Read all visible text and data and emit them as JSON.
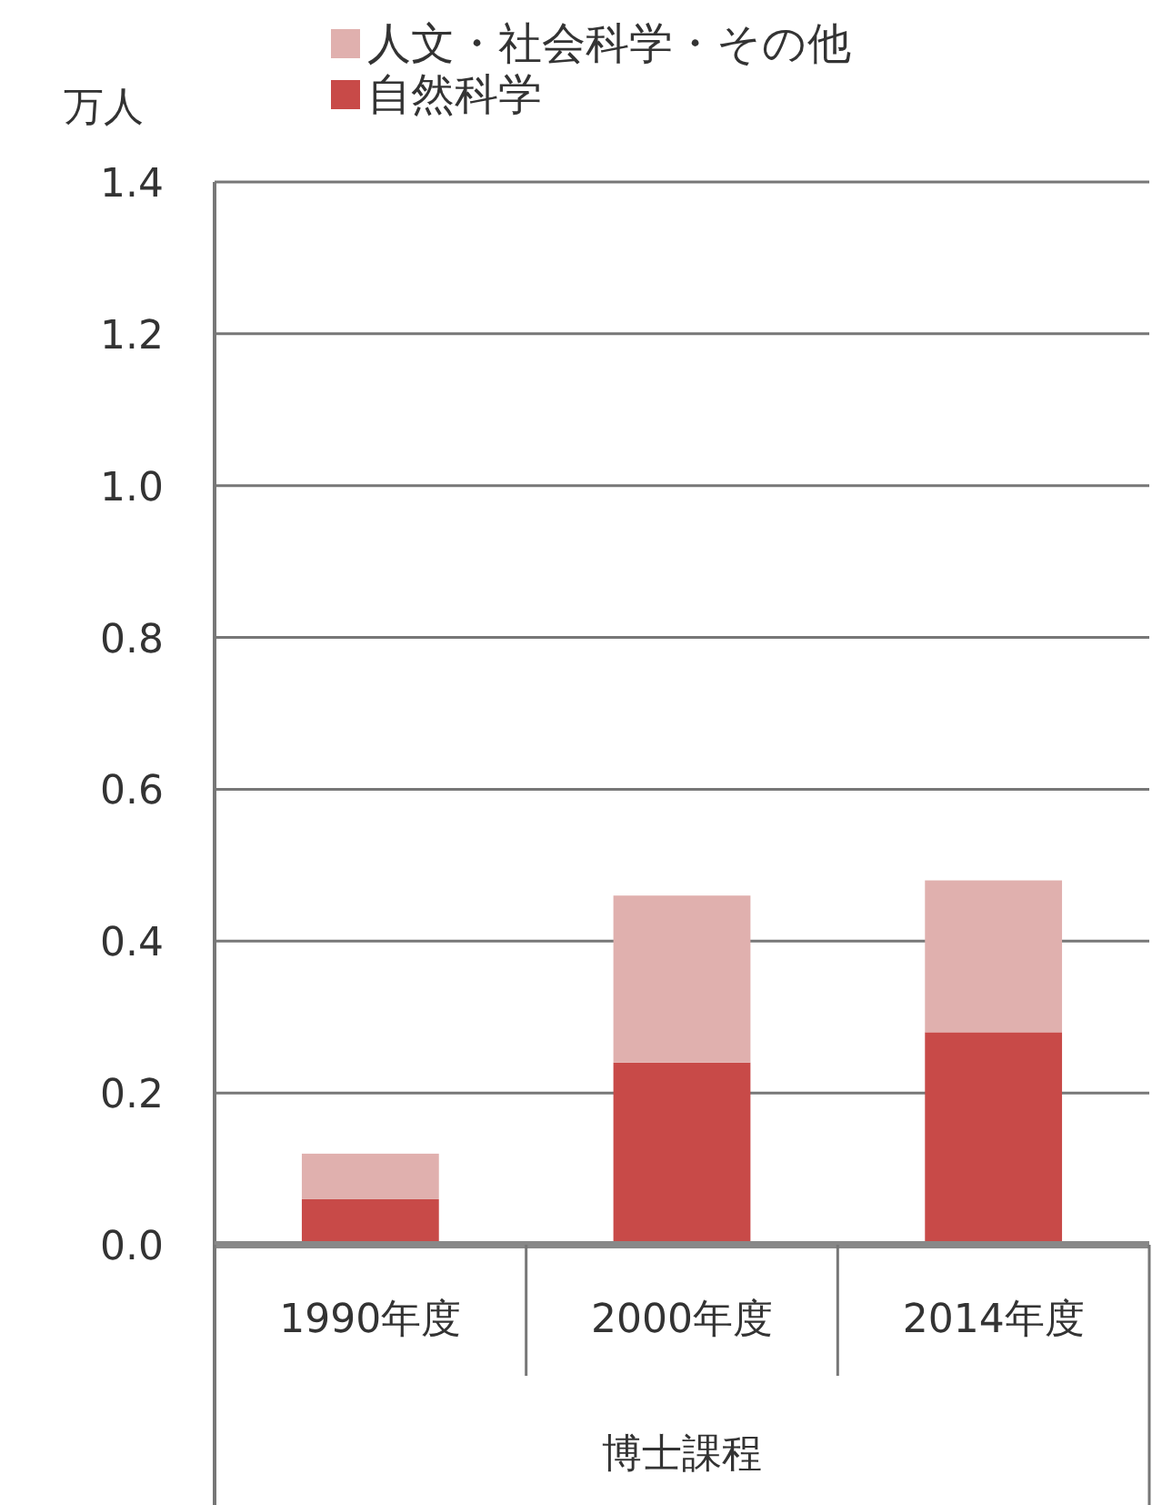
{
  "chart_data": {
    "type": "bar",
    "stacked": true,
    "ylabel": "万人",
    "xlabel": "博士課程",
    "categories": [
      "1990年度",
      "2000年度",
      "2014年度"
    ],
    "series": [
      {
        "name": "自然科学",
        "color": "#c84a48",
        "values": [
          0.06,
          0.24,
          0.28
        ]
      },
      {
        "name": "人文・社会科学・その他",
        "color": "#e0b0ae",
        "values": [
          0.06,
          0.22,
          0.2
        ]
      }
    ],
    "ylim": [
      0,
      1.4
    ],
    "yticks": [
      {
        "value": 0,
        "label": "0.0"
      },
      0.2,
      0.4,
      0.6,
      0.8,
      {
        "value": 1,
        "label": "1.0"
      },
      1.2,
      1.4
    ],
    "grid": "y",
    "legend": "top"
  }
}
